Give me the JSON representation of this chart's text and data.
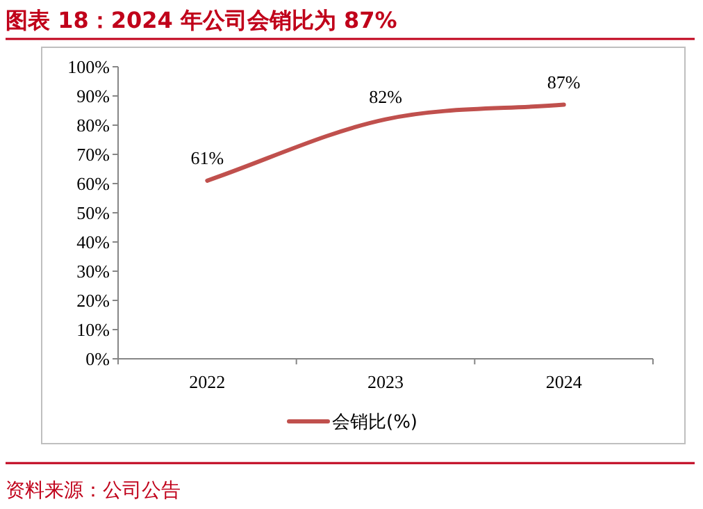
{
  "chart_data": {
    "type": "line",
    "title": "图表 18：2024 年公司会销比为 87%",
    "categories": [
      "2022",
      "2023",
      "2024"
    ],
    "series": [
      {
        "name": "会销比(%)",
        "color": "#c0504d",
        "values": [
          61,
          82,
          87
        ],
        "value_labels": [
          "61%",
          "82%",
          "87%"
        ]
      }
    ],
    "ylim": [
      0,
      100
    ],
    "yticks": [
      {
        "value": 0,
        "label": "0%"
      },
      {
        "value": 10,
        "label": "10%"
      },
      {
        "value": 20,
        "label": "20%"
      },
      {
        "value": 30,
        "label": "30%"
      },
      {
        "value": 40,
        "label": "40%"
      },
      {
        "value": 50,
        "label": "50%"
      },
      {
        "value": 60,
        "label": "60%"
      },
      {
        "value": 70,
        "label": "70%"
      },
      {
        "value": 80,
        "label": "80%"
      },
      {
        "value": 90,
        "label": "90%"
      },
      {
        "value": 100,
        "label": "100%"
      }
    ],
    "legend": "bottom",
    "marker": "none",
    "line_style": "solid",
    "annotations": [
      "资料来源：公司公告"
    ]
  }
}
